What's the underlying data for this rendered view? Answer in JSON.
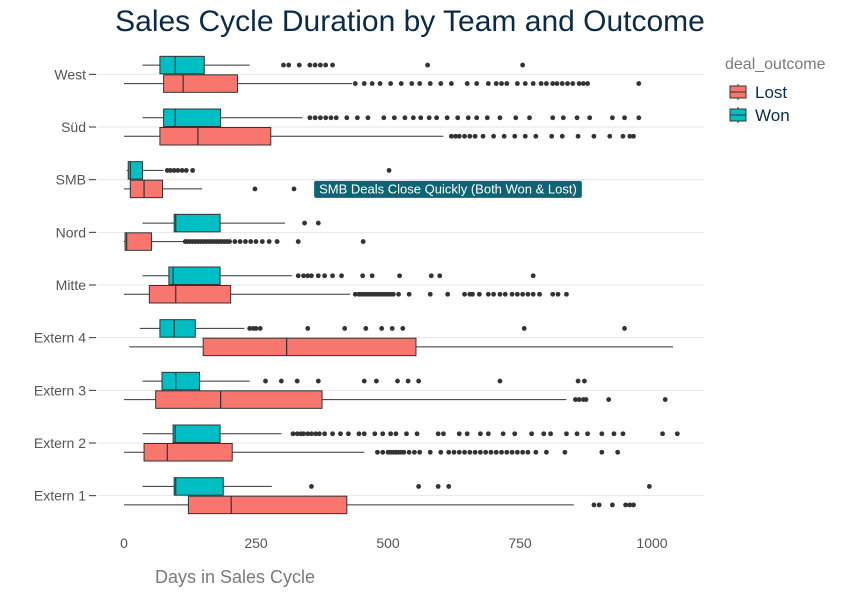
{
  "chart_data": {
    "type": "boxplot",
    "title": "Sales Cycle Duration by Team and Outcome",
    "xlabel": "Days in Sales Cycle",
    "ylabel": "",
    "xlim": [
      -35,
      1090
    ],
    "x_ticks": [
      0,
      250,
      500,
      750,
      1000
    ],
    "x_tick_labels": [
      "0",
      "250",
      "500",
      "750",
      "1000"
    ],
    "orientation": "horizontal",
    "grid": "horizontal-major",
    "legend": {
      "title": "deal_outcome",
      "placement": "right-top",
      "entries": [
        {
          "name": "Lost",
          "color": "#f8766d"
        },
        {
          "name": "Won",
          "color": "#00bfc4"
        }
      ]
    },
    "categories": [
      "Extern 1",
      "Extern 2",
      "Extern 3",
      "Extern 4",
      "Mitte",
      "Nord",
      "SMB",
      "Süd",
      "West"
    ],
    "series": [
      {
        "name": "Lost",
        "color": "#f8766d",
        "boxes": [
          {
            "whisker_low": 0,
            "q1": 122,
            "median": 203,
            "q3": 422,
            "whisker_high": 852,
            "outliers": [
              890,
              900,
              925,
              950,
              958,
              965
            ]
          },
          {
            "whisker_low": 0,
            "q1": 38,
            "median": 82,
            "q3": 205,
            "whisker_high": 455,
            "outliers": [
              480,
              490,
              500,
              505,
              510,
              515,
              520,
              525,
              530,
              540,
              550,
              560,
              580,
              600,
              615,
              625,
              635,
              645,
              655,
              665,
              675,
              685,
              695,
              705,
              715,
              725,
              735,
              745,
              755,
              765,
              780,
              800,
              835,
              905,
              935
            ]
          },
          {
            "whisker_low": 0,
            "q1": 60,
            "median": 183,
            "q3": 375,
            "whisker_high": 838,
            "outliers": [
              855,
              862,
              870,
              875,
              918,
              1025
            ]
          },
          {
            "whisker_low": 10,
            "q1": 150,
            "median": 308,
            "q3": 553,
            "whisker_high": 1040,
            "outliers": []
          },
          {
            "whisker_low": 0,
            "q1": 48,
            "median": 98,
            "q3": 202,
            "whisker_high": 428,
            "outliers": [
              438,
              445,
              450,
              455,
              460,
              465,
              470,
              475,
              480,
              485,
              490,
              495,
              500,
              505,
              510,
              520,
              540,
              580,
              613,
              645,
              655,
              660,
              673,
              690,
              700,
              712,
              722,
              735,
              745,
              755,
              765,
              775,
              787,
              812,
              822,
              838
            ]
          },
          {
            "whisker_low": 0,
            "q1": 2,
            "median": 5,
            "q3": 52,
            "whisker_high": 112,
            "outliers": [
              116,
              120,
              125,
              130,
              135,
              140,
              145,
              150,
              155,
              160,
              165,
              170,
              175,
              180,
              185,
              190,
              195,
              200,
              210,
              220,
              230,
              240,
              250,
              262,
              275,
              290,
              330,
              453
            ]
          },
          {
            "whisker_low": 0,
            "q1": 12,
            "median": 38,
            "q3": 73,
            "whisker_high": 148,
            "outliers": [
              248,
              322
            ]
          },
          {
            "whisker_low": 0,
            "q1": 68,
            "median": 140,
            "q3": 278,
            "whisker_high": 605,
            "outliers": [
              620,
              628,
              635,
              645,
              655,
              665,
              680,
              700,
              720,
              740,
              760,
              780,
              810,
              830,
              860,
              890,
              920,
              945,
              958,
              965
            ]
          },
          {
            "whisker_low": 0,
            "q1": 75,
            "median": 112,
            "q3": 215,
            "whisker_high": 432,
            "outliers": [
              438,
              455,
              470,
              485,
              505,
              525,
              545,
              560,
              580,
              600,
              620,
              650,
              668,
              690,
              705,
              715,
              725,
              745,
              760,
              775,
              790,
              800,
              812,
              820,
              830,
              840,
              850,
              862,
              870,
              878,
              975
            ]
          }
        ]
      },
      {
        "name": "Won",
        "color": "#00bfc4",
        "boxes": [
          {
            "whisker_low": 35,
            "q1": 95,
            "median": 98,
            "q3": 188,
            "whisker_high": 280,
            "outliers": [
              355,
              558,
              595,
              615,
              995
            ]
          },
          {
            "whisker_low": 35,
            "q1": 93,
            "median": 97,
            "q3": 182,
            "whisker_high": 298,
            "outliers": [
              320,
              328,
              335,
              340,
              348,
              355,
              363,
              370,
              380,
              395,
              410,
              425,
              445,
              455,
              475,
              490,
              505,
              515,
              535,
              555,
              595,
              605,
              635,
              650,
              675,
              690,
              718,
              740,
              772,
              795,
              808,
              838,
              858,
              878,
              905,
              928,
              945,
              1020,
              1048
            ]
          },
          {
            "whisker_low": 35,
            "q1": 72,
            "median": 98,
            "q3": 143,
            "whisker_high": 238,
            "outliers": [
              268,
              298,
              328,
              368,
              455,
              478,
              518,
              538,
              558,
              712,
              860,
              872
            ]
          },
          {
            "whisker_low": 30,
            "q1": 68,
            "median": 95,
            "q3": 135,
            "whisker_high": 228,
            "outliers": [
              238,
              245,
              250,
              258,
              348,
              418,
              458,
              488,
              508,
              528,
              758,
              948
            ]
          },
          {
            "whisker_low": 35,
            "q1": 85,
            "median": 93,
            "q3": 182,
            "whisker_high": 318,
            "outliers": [
              330,
              340,
              348,
              355,
              368,
              380,
              395,
              412,
              452,
              470,
              522,
              582,
              598,
              775
            ]
          },
          {
            "whisker_low": 35,
            "q1": 95,
            "median": 98,
            "q3": 182,
            "whisker_high": 305,
            "outliers": [
              342,
              368
            ]
          },
          {
            "whisker_low": 5,
            "q1": 8,
            "median": 12,
            "q3": 35,
            "whisker_high": 75,
            "outliers": [
              82,
              88,
              95,
              102,
              110,
              118,
              130,
              502
            ]
          },
          {
            "whisker_low": 35,
            "q1": 75,
            "median": 97,
            "q3": 183,
            "whisker_high": 338,
            "outliers": [
              352,
              362,
              372,
              382,
              392,
              402,
              422,
              442,
              462,
              492,
              512,
              532,
              548,
              562,
              578,
              592,
              612,
              632,
              652,
              668,
              688,
              712,
              742,
              768,
              812,
              832,
              858,
              882,
              925,
              948,
              975
            ]
          },
          {
            "whisker_low": 35,
            "q1": 68,
            "median": 97,
            "q3": 152,
            "whisker_high": 238,
            "outliers": [
              302,
              312,
              332,
              352,
              362,
              372,
              382,
              395,
              575,
              755
            ]
          }
        ]
      }
    ],
    "annotations": [
      {
        "text": "SMB Deals Close Quickly (Both Won & Lost)",
        "x": 362,
        "category": "SMB"
      }
    ]
  }
}
